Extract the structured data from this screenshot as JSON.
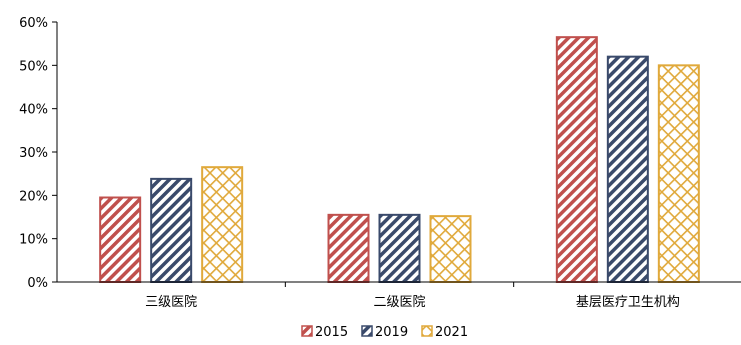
{
  "chart_data": {
    "type": "bar",
    "categories": [
      "三级医院",
      "二级医院",
      "基层医疗卫生机构"
    ],
    "series": [
      {
        "name": "2015",
        "values": [
          19.5,
          15.5,
          56.5
        ],
        "color": "#c0504d",
        "pattern": "diagonal"
      },
      {
        "name": "2019",
        "values": [
          23.8,
          15.5,
          52.0
        ],
        "color": "#3a4a6b",
        "pattern": "diagonal"
      },
      {
        "name": "2021",
        "values": [
          26.5,
          15.2,
          50.0
        ],
        "color": "#e0a93b",
        "pattern": "lattice"
      }
    ],
    "yticks": [
      "0%",
      "10%",
      "20%",
      "30%",
      "40%",
      "50%",
      "60%"
    ],
    "ylim": [
      0,
      60
    ],
    "title": "",
    "xlabel": "",
    "ylabel": "",
    "grid": false,
    "legend": "bottom-center"
  }
}
